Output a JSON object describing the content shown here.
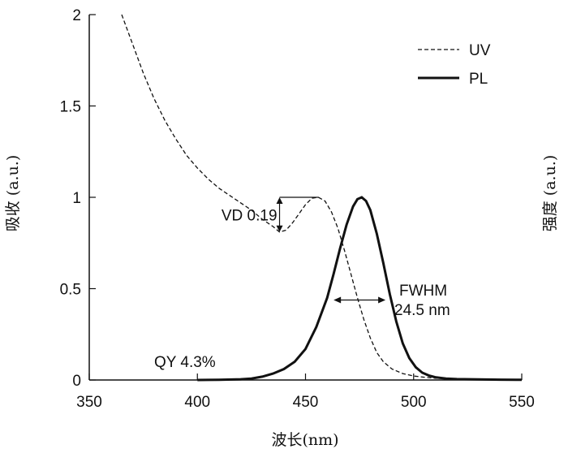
{
  "chart_data": {
    "type": "line",
    "title": "",
    "xlabel": "波长(nm)",
    "ylabel": "吸收 (a.u.)",
    "y2label": "强度 (a.u.)",
    "xlim": [
      350,
      550
    ],
    "ylim": [
      0,
      2
    ],
    "xticks": [
      "350",
      "400",
      "450",
      "500",
      "550"
    ],
    "yticks": [
      "0",
      "0.5",
      "1",
      "1.5",
      "2"
    ],
    "grid": false,
    "legend_position": "top-right",
    "series": [
      {
        "name": "UV",
        "style": "dashed",
        "x": [
          365,
          370,
          375,
          380,
          385,
          390,
          395,
          400,
          405,
          410,
          415,
          420,
          425,
          430,
          435,
          438,
          441,
          444,
          447,
          450,
          453,
          456,
          459,
          462,
          465,
          468,
          471,
          474,
          477,
          480,
          483,
          486,
          490,
          495,
          500,
          505,
          510,
          520,
          530,
          540,
          550
        ],
        "y": [
          2.0,
          1.84,
          1.68,
          1.54,
          1.42,
          1.32,
          1.23,
          1.16,
          1.1,
          1.05,
          1.01,
          0.97,
          0.93,
          0.88,
          0.84,
          0.81,
          0.82,
          0.86,
          0.91,
          0.96,
          0.995,
          1.0,
          0.98,
          0.92,
          0.83,
          0.71,
          0.58,
          0.45,
          0.33,
          0.23,
          0.15,
          0.1,
          0.06,
          0.035,
          0.022,
          0.015,
          0.01,
          0.007,
          0.005,
          0.004,
          0.003
        ]
      },
      {
        "name": "PL",
        "style": "solid",
        "x": [
          400,
          410,
          420,
          425,
          430,
          435,
          440,
          445,
          450,
          455,
          460,
          463,
          466,
          469,
          472,
          474,
          476,
          478,
          480,
          483,
          486,
          489,
          492,
          495,
          498,
          501,
          504,
          507,
          510,
          515,
          520,
          530,
          540,
          550
        ],
        "y": [
          0.0,
          0.001,
          0.004,
          0.008,
          0.018,
          0.035,
          0.06,
          0.1,
          0.17,
          0.29,
          0.45,
          0.58,
          0.72,
          0.85,
          0.95,
          0.99,
          1.0,
          0.98,
          0.93,
          0.8,
          0.64,
          0.47,
          0.32,
          0.2,
          0.12,
          0.07,
          0.04,
          0.025,
          0.015,
          0.008,
          0.005,
          0.003,
          0.002,
          0.001
        ]
      }
    ],
    "annotations": {
      "vd": "VD 0.19",
      "fwhm_title": "FWHM",
      "fwhm_value": "24.5 nm",
      "qy": "QY 4.3%"
    },
    "vd_marker": {
      "x": 438,
      "y_low": 0.81,
      "y_high": 1.0,
      "x_peak": 456
    },
    "fwhm_marker": {
      "x_left": 463,
      "x_right": 487,
      "y": 0.5
    },
    "colors": {
      "line": "#111111",
      "axis": "#111111",
      "background": "#ffffff"
    }
  }
}
